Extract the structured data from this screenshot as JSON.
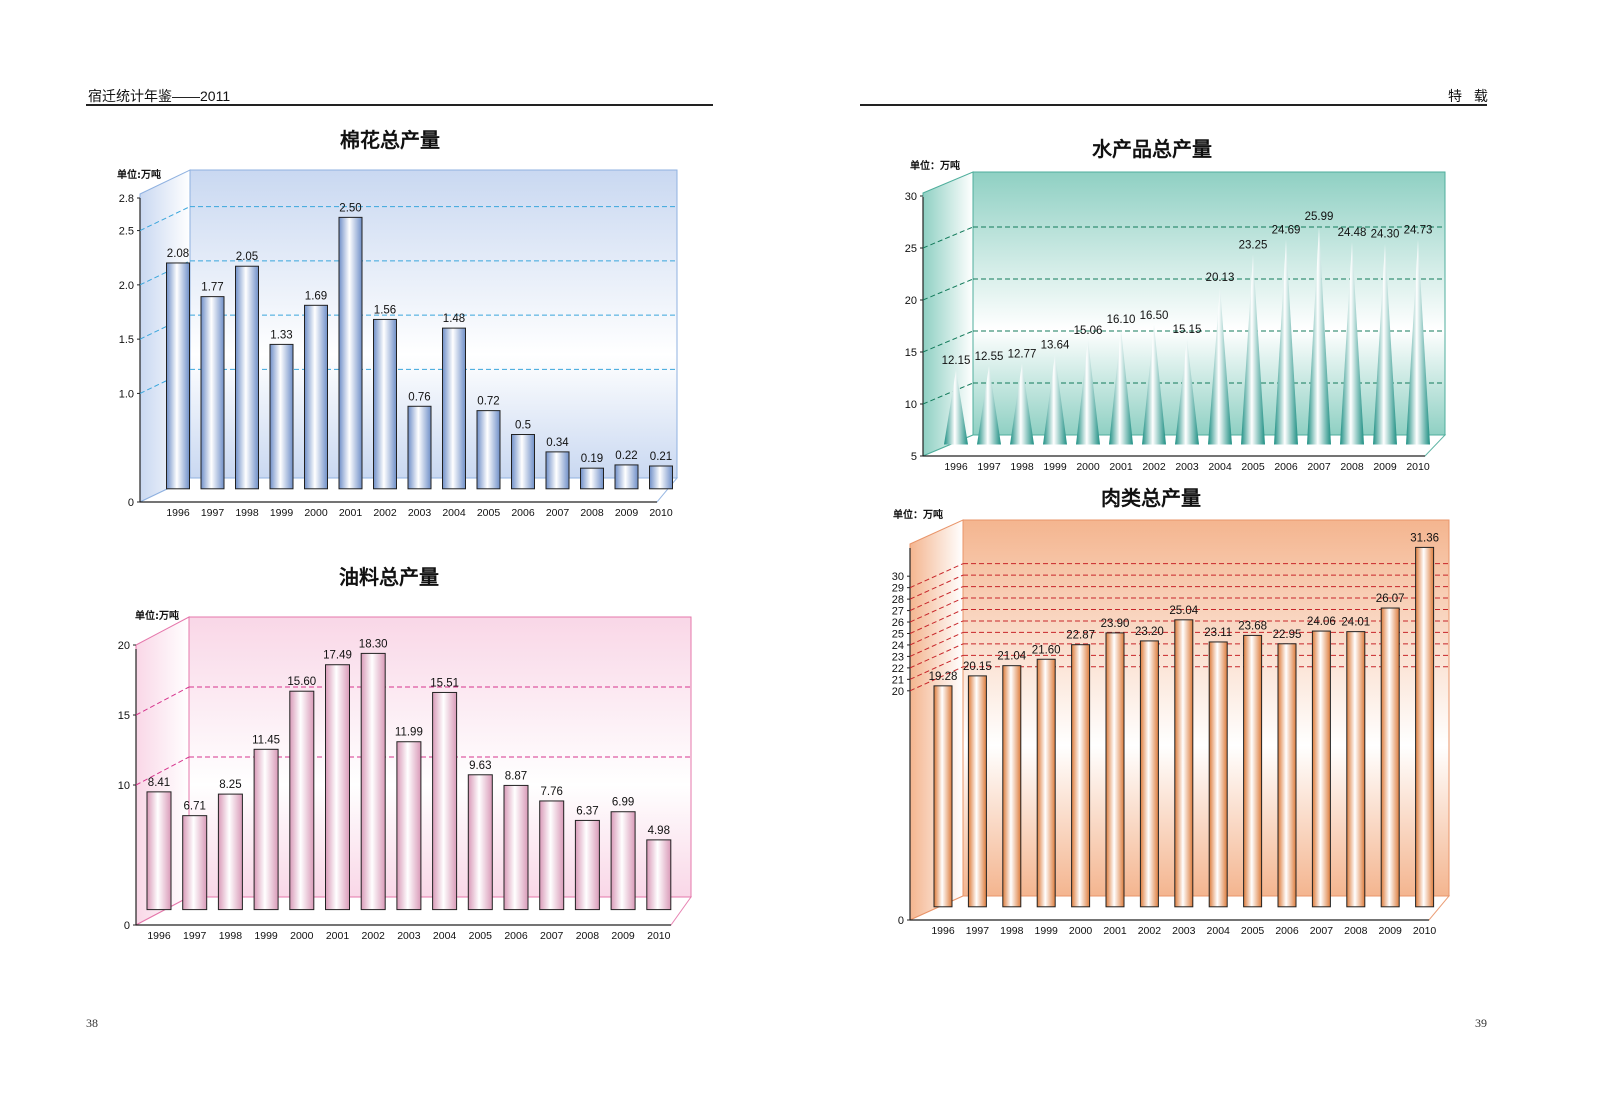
{
  "header": {
    "left_title": "宿迁统计年鉴——2011",
    "right_title": "特 载"
  },
  "page_numbers": {
    "left": "38",
    "right": "39"
  },
  "chart_data": [
    {
      "id": "cotton",
      "type": "bar",
      "title": "棉花总产量",
      "unit": "单位:万吨",
      "categories": [
        "1996",
        "1997",
        "1998",
        "1999",
        "2000",
        "2001",
        "2002",
        "2003",
        "2004",
        "2005",
        "2006",
        "2007",
        "2008",
        "2009",
        "2010"
      ],
      "values": [
        2.08,
        1.77,
        2.05,
        1.33,
        1.69,
        2.5,
        1.56,
        0.76,
        1.48,
        0.72,
        0.5,
        0.34,
        0.19,
        0.22,
        0.21
      ],
      "value_labels": [
        "2.08",
        "1.77",
        "2.05",
        "1.33",
        "1.69",
        "2.50",
        "1.56",
        "0.76",
        "1.48",
        "0.72",
        "0.5",
        "0.34",
        "0.19",
        "0.22",
        "0.21"
      ],
      "yticks": [
        "0",
        "1.0",
        "1.5",
        "2.0",
        "2.5",
        "2.8"
      ],
      "ylim": [
        0,
        2.8
      ],
      "grid": "dashed",
      "colors": {
        "bar": "#b9cdef",
        "bar_dark": "#6f8fc8",
        "wall": "#c9d8f1",
        "grid": "#3aa6dc",
        "border": "#8fb1e0"
      }
    },
    {
      "id": "oil",
      "type": "bar",
      "title": "油料总产量",
      "unit": "单位:万吨",
      "categories": [
        "1996",
        "1997",
        "1998",
        "1999",
        "2000",
        "2001",
        "2002",
        "2003",
        "2004",
        "2005",
        "2006",
        "2007",
        "2008",
        "2009",
        "2010"
      ],
      "values": [
        8.41,
        6.71,
        8.25,
        11.45,
        15.6,
        17.49,
        18.3,
        11.99,
        15.51,
        9.63,
        8.87,
        7.76,
        6.37,
        6.99,
        4.98
      ],
      "value_labels": [
        "8.41",
        "6.71",
        "8.25",
        "11.45",
        "15.60",
        "17.49",
        "18.30",
        "11.99",
        "15.51",
        "9.63",
        "8.87",
        "7.76",
        "6.37",
        "6.99",
        "4.98"
      ],
      "yticks": [
        "0",
        "10",
        "15",
        "20"
      ],
      "ylim": [
        0,
        20
      ],
      "grid": "dashed",
      "colors": {
        "bar": "#fbe0ec",
        "bar_dark": "#d99ab8",
        "wall": "#f9d7e7",
        "grid": "#d6358d",
        "border": "#e577ab"
      }
    },
    {
      "id": "aquatic",
      "type": "bar",
      "shape": "cone",
      "title": "水产品总产量",
      "unit": "单位：万吨",
      "categories": [
        "1996",
        "1997",
        "1998",
        "1999",
        "2000",
        "2001",
        "2002",
        "2003",
        "2004",
        "2005",
        "2006",
        "2007",
        "2008",
        "2009",
        "2010"
      ],
      "values": [
        12.15,
        12.55,
        12.77,
        13.64,
        15.06,
        16.1,
        16.5,
        15.15,
        20.13,
        23.25,
        24.69,
        25.99,
        24.48,
        24.3,
        24.73
      ],
      "value_labels": [
        "12.15",
        "12.55",
        "12.77",
        "13.64",
        "15.06",
        "16.10",
        "16.50",
        "15.15",
        "20.13",
        "23.25",
        "24.69",
        "25.99",
        "24.48",
        "24.30",
        "24.73"
      ],
      "yticks": [
        "5",
        "10",
        "15",
        "20",
        "25",
        "30"
      ],
      "ylim": [
        5,
        30
      ],
      "grid": "dashed",
      "colors": {
        "bar": "#e8f5f1",
        "bar_dark": "#1d8f83",
        "wall": "#8fd0c3",
        "grid": "#127a5a",
        "border": "#4fae9c"
      }
    },
    {
      "id": "meat",
      "type": "bar",
      "title": "肉类总产量",
      "unit": "单位：万吨",
      "categories": [
        "1996",
        "1997",
        "1998",
        "1999",
        "2000",
        "2001",
        "2002",
        "2003",
        "2004",
        "2005",
        "2006",
        "2007",
        "2008",
        "2009",
        "2010"
      ],
      "values": [
        19.28,
        20.15,
        21.04,
        21.6,
        22.87,
        23.9,
        23.2,
        25.04,
        23.11,
        23.68,
        22.95,
        24.06,
        24.01,
        26.07,
        31.36
      ],
      "value_labels": [
        "19.28",
        "20.15",
        "21.04",
        "21.60",
        "22.87",
        "23.90",
        "23.20",
        "25.04",
        "23.11",
        "23.68",
        "22.95",
        "24.06",
        "24.01",
        "26.07",
        "31.36"
      ],
      "yticks": [
        "0",
        "20",
        "21",
        "22",
        "23",
        "24",
        "25",
        "26",
        "27",
        "28",
        "29",
        "30"
      ],
      "ylim": [
        0,
        31.5
      ],
      "grid": "dashed",
      "colors": {
        "bar": "#fbe0c9",
        "bar_dark": "#dd7c3c",
        "wall": "#f4b58f",
        "grid": "#c8262a",
        "border": "#e9956a"
      }
    }
  ]
}
